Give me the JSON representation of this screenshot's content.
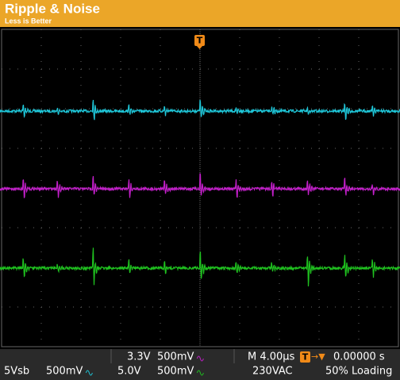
{
  "header": {
    "title": "Ripple & Noise",
    "subtitle": "Less is Better"
  },
  "trigger_marker": "T",
  "status": {
    "channels": [
      {
        "rail": "5Vsb",
        "scale": "500mV",
        "color": "#1fc6d8"
      },
      {
        "rail": "3.3V",
        "scale": "500mV",
        "color": "#c21fc9"
      },
      {
        "rail": "5.0V",
        "scale": "500mV",
        "color": "#1fc11f"
      }
    ],
    "timebase": "M 4.00µs",
    "trigger_symbol": "T",
    "trigger_arrow": "→▼",
    "trigger_position": "0.00000 s",
    "input": "230VAC",
    "load": "50% Loading"
  }
}
